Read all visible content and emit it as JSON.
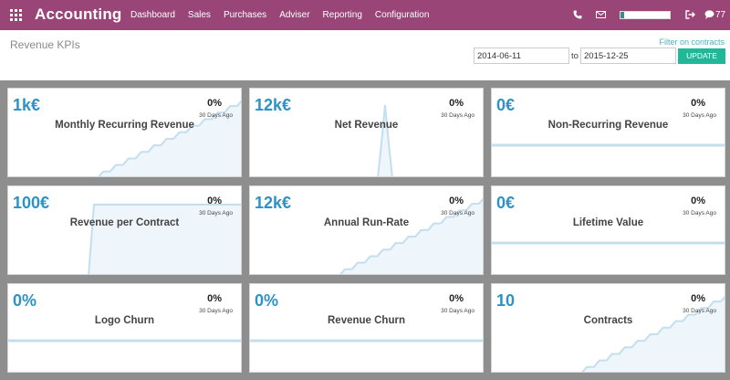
{
  "navbar": {
    "brand": "Accounting",
    "menu": [
      "Dashboard",
      "Sales",
      "Purchases",
      "Adviser",
      "Reporting",
      "Configuration"
    ],
    "chat_count": "77",
    "icons": [
      "apps-grid-icon",
      "phone-icon",
      "mail-icon",
      "sign-out-icon",
      "chat-icon"
    ],
    "colors": {
      "bar": "#9a4578"
    },
    "progress": 0.08
  },
  "control_panel": {
    "title": "Revenue KPIs",
    "filter_link": "Filter on contracts",
    "date_from": "2014-06-11",
    "to_label": "to",
    "date_to": "2015-12-25",
    "update_label": "UPDATE"
  },
  "colors": {
    "value": "#2d92c6",
    "line": "#c3dfee",
    "fill": "#eef5fb",
    "update": "#21b799",
    "background": "#8e8e8e"
  },
  "cards": [
    {
      "value": "1k€",
      "growth": "0%",
      "period": "30 Days Ago",
      "title": "Monthly Recurring Revenue",
      "trend": "rising"
    },
    {
      "value": "12k€",
      "growth": "0%",
      "period": "30 Days Ago",
      "title": "Net Revenue",
      "trend": "spike"
    },
    {
      "value": "0€",
      "growth": "0%",
      "period": "30 Days Ago",
      "title": "Non-Recurring Revenue",
      "trend": "flat"
    },
    {
      "value": "100€",
      "growth": "0%",
      "period": "30 Days Ago",
      "title": "Revenue per Contract",
      "trend": "step"
    },
    {
      "value": "12k€",
      "growth": "0%",
      "period": "30 Days Ago",
      "title": "Annual Run-Rate",
      "trend": "rising"
    },
    {
      "value": "0€",
      "growth": "0%",
      "period": "30 Days Ago",
      "title": "Lifetime Value",
      "trend": "flat"
    },
    {
      "value": "0%",
      "growth": "0%",
      "period": "30 Days Ago",
      "title": "Logo Churn",
      "trend": "flat"
    },
    {
      "value": "0%",
      "growth": "0%",
      "period": "30 Days Ago",
      "title": "Revenue Churn",
      "trend": "flat"
    },
    {
      "value": "10",
      "growth": "0%",
      "period": "30 Days Ago",
      "title": "Contracts",
      "trend": "rising"
    }
  ]
}
